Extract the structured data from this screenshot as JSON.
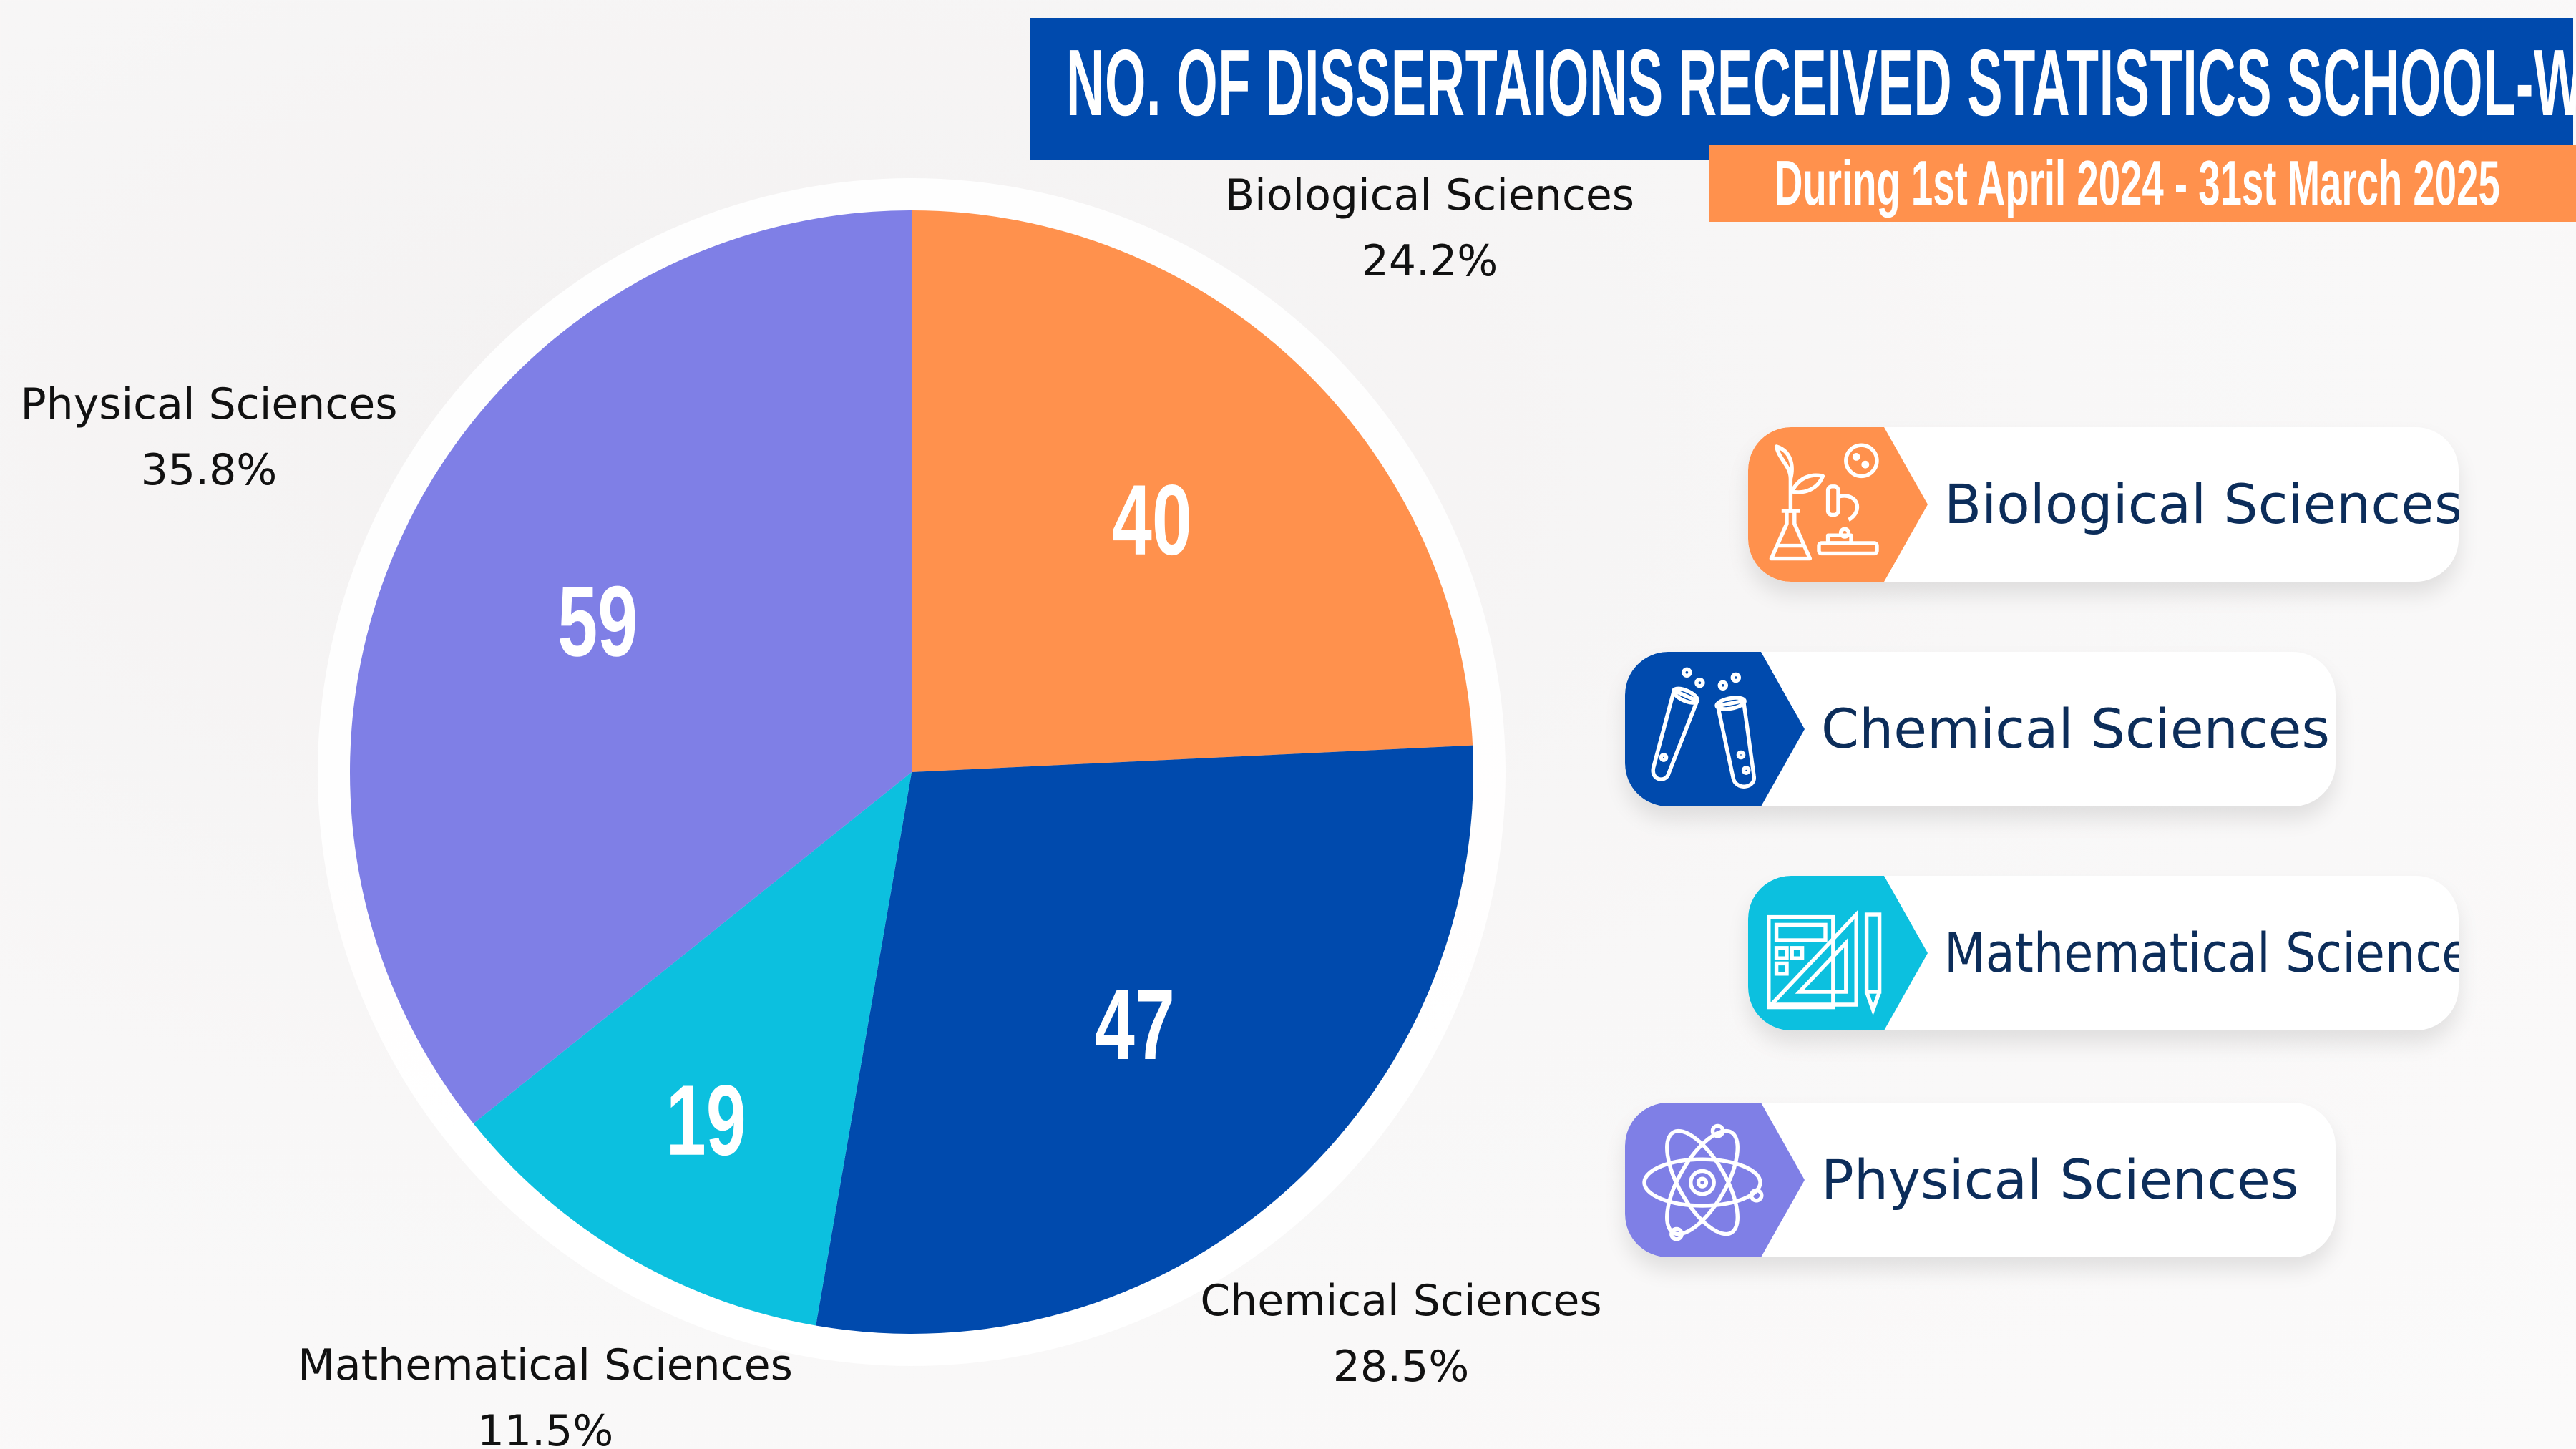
{
  "header": {
    "title": "NO. OF DISSERTAIONS RECEIVED STATISTICS SCHOOL-WISE",
    "subtitle": "During 1st April 2024 - 31st March 2025"
  },
  "colors": {
    "title_bg": "#004aad",
    "subtitle_bg": "#ff914d",
    "text_dark": "#0c2d5a"
  },
  "chart_data": {
    "type": "pie",
    "title": "",
    "start_angle_deg": 0,
    "direction": "clockwise",
    "slices": [
      {
        "label": "Biological Sciences",
        "value": 40,
        "percent": "24.2%",
        "color": "#ff914d"
      },
      {
        "label": "Chemical Sciences",
        "value": 47,
        "percent": "28.5%",
        "color": "#004aad"
      },
      {
        "label": "Mathematical Sciences",
        "value": 19,
        "percent": "11.5%",
        "color": "#0cc0df"
      },
      {
        "label": "Physical Sciences",
        "value": 59,
        "percent": "35.8%",
        "color": "#7f7fe6"
      }
    ]
  },
  "legend": {
    "items": [
      {
        "label": "Biological Sciences",
        "icon": "biology-lab-icon",
        "color": "#ff914d"
      },
      {
        "label": "Chemical Sciences",
        "icon": "test-tubes-icon",
        "color": "#004aad"
      },
      {
        "label": "Mathematical Sciences",
        "icon": "calculator-ruler-icon",
        "color": "#0cc0df"
      },
      {
        "label": "Physical Sciences",
        "icon": "atom-icon",
        "color": "#7f7fe6"
      }
    ]
  }
}
